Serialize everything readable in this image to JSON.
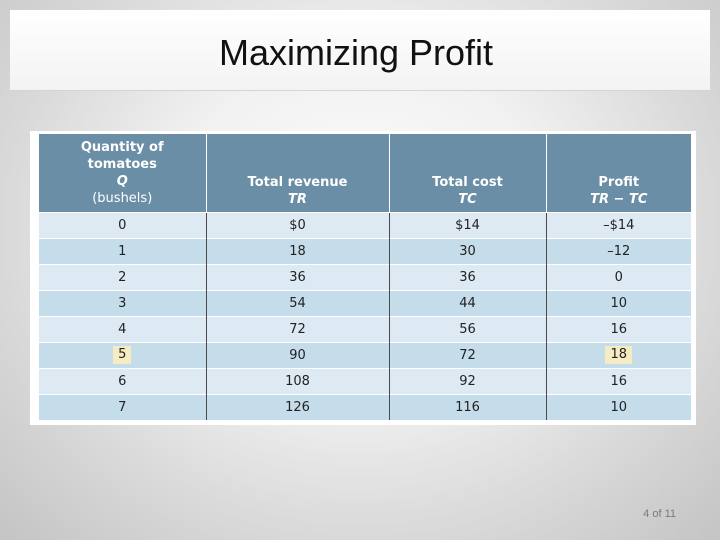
{
  "slide": {
    "title": "Maximizing Profit",
    "page_number": "4 of 11"
  },
  "table": {
    "headers": [
      {
        "line1": "Quantity of",
        "line2": "tomatoes",
        "line3": "Q",
        "line4": "(bushels)"
      },
      {
        "line1": "Total revenue",
        "line2": "TR"
      },
      {
        "line1": "Total cost",
        "line2": "TC"
      },
      {
        "line1": "Profit",
        "line2": "TR − TC"
      }
    ],
    "rows": [
      [
        "0",
        "$0",
        "$14",
        "–$14"
      ],
      [
        "1",
        "18",
        "30",
        "–12"
      ],
      [
        "2",
        "36",
        "36",
        "0"
      ],
      [
        "3",
        "54",
        "44",
        "10"
      ],
      [
        "4",
        "72",
        "56",
        "16"
      ],
      [
        "5",
        "90",
        "72",
        "18"
      ],
      [
        "6",
        "108",
        "92",
        "16"
      ],
      [
        "7",
        "126",
        "116",
        "10"
      ]
    ],
    "highlight_color": "#f6ecc4",
    "header_color": "#6a8ea6"
  }
}
